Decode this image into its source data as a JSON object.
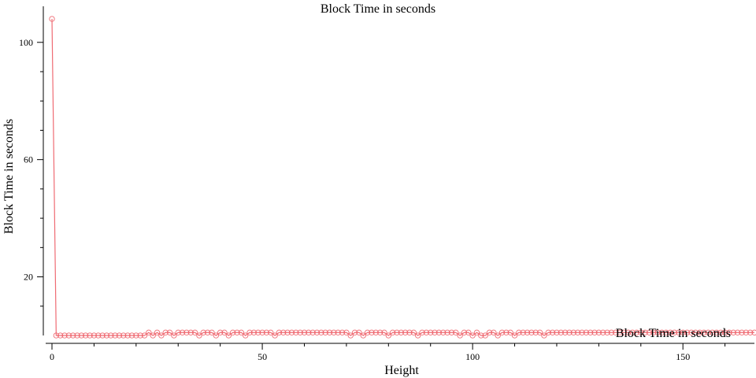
{
  "chart_data": {
    "type": "line",
    "title": "Block Time in seconds",
    "xlabel": "Height",
    "ylabel": "Block Time in seconds",
    "xlim": [
      0,
      167
    ],
    "ylim": [
      0,
      108
    ],
    "x_ticks": [
      0,
      50,
      100,
      150
    ],
    "x_tick_labels": [
      "0",
      "50",
      "100",
      "150"
    ],
    "y_ticks": [
      20,
      60,
      100
    ],
    "y_tick_labels": [
      "20",
      "60",
      "100"
    ],
    "x_minor_step": 10,
    "y_minor_step": 10,
    "grid": false,
    "legend": {
      "position": "bottom-right",
      "label": "Block Time in seconds"
    },
    "colors": {
      "series": "#ef6b73"
    },
    "series": [
      {
        "name": "Block Time in seconds",
        "x_start": 0,
        "x_step": 1,
        "values": [
          108,
          0,
          0,
          0,
          0,
          0,
          0,
          0,
          0,
          0,
          0,
          0,
          0,
          0,
          0,
          0,
          0,
          0,
          0,
          0,
          0,
          0,
          0,
          1,
          0,
          1,
          0,
          1,
          1,
          0,
          1,
          1,
          1,
          1,
          1,
          0,
          1,
          1,
          1,
          0,
          1,
          1,
          0,
          1,
          1,
          1,
          0,
          1,
          1,
          1,
          1,
          1,
          1,
          0,
          1,
          1,
          1,
          1,
          1,
          1,
          1,
          1,
          1,
          1,
          1,
          1,
          1,
          1,
          1,
          1,
          1,
          0,
          1,
          1,
          0,
          1,
          1,
          1,
          1,
          1,
          0,
          1,
          1,
          1,
          1,
          1,
          1,
          0,
          1,
          1,
          1,
          1,
          1,
          1,
          1,
          1,
          1,
          0,
          1,
          1,
          0,
          1,
          0,
          0,
          1,
          1,
          0,
          1,
          1,
          1,
          0,
          1,
          1,
          1,
          1,
          1,
          1,
          0,
          1,
          1,
          1,
          1,
          1,
          1,
          1,
          1,
          1,
          1,
          1,
          1,
          1,
          1,
          1,
          1,
          1,
          1,
          1,
          1,
          1,
          1,
          1,
          1,
          1,
          1,
          1,
          1,
          1,
          1,
          1,
          1,
          1,
          1,
          1,
          1,
          1,
          1,
          1,
          1,
          1,
          1,
          1,
          1,
          1,
          1,
          1,
          1,
          1,
          1
        ]
      }
    ]
  }
}
